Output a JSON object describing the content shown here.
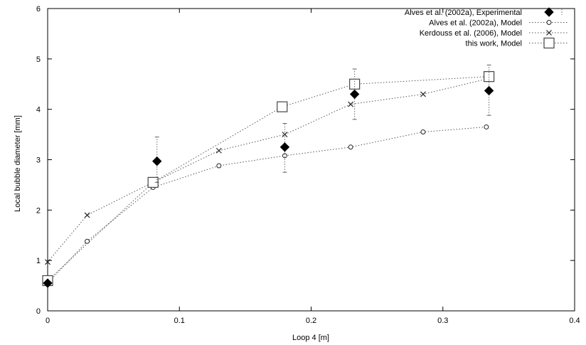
{
  "chart_data": {
    "type": "scatter",
    "xlabel": "Loop 4 [m]",
    "ylabel": "Local bubble diameter [mm]",
    "xlim": [
      0,
      0.4
    ],
    "ylim": [
      0,
      6
    ],
    "x_ticks": [
      0,
      0.1,
      0.2,
      0.3,
      0.4
    ],
    "x_tick_labels": [
      "0",
      "0.1",
      "0.2",
      "0.3",
      "0.4"
    ],
    "y_ticks": [
      0,
      1,
      2,
      3,
      4,
      5,
      6
    ],
    "y_tick_labels": [
      "0",
      "1",
      "2",
      "3",
      "4",
      "5",
      "6"
    ],
    "grid": false,
    "legend_position": "top-right",
    "series": [
      {
        "name": "Alves et al. (2002a), Experimental",
        "marker": "diamond",
        "line": "none",
        "x": [
          0.0,
          0.083,
          0.18,
          0.233,
          0.335
        ],
        "y": [
          0.55,
          2.97,
          3.25,
          4.3,
          4.37
        ],
        "err_low": [
          0.55,
          2.55,
          2.75,
          3.8,
          3.88
        ],
        "err_high": [
          0.55,
          3.45,
          3.72,
          4.8,
          4.88
        ]
      },
      {
        "name": "Alves et al. (2002a), Model",
        "marker": "circle",
        "line": "dotted",
        "x": [
          0.0,
          0.03,
          0.08,
          0.13,
          0.18,
          0.23,
          0.285,
          0.333
        ],
        "y": [
          0.55,
          1.38,
          2.45,
          2.88,
          3.08,
          3.25,
          3.55,
          3.65
        ]
      },
      {
        "name": "Kerdouss et al. (2006), Model",
        "marker": "x",
        "line": "dotted",
        "x": [
          0.0,
          0.03,
          0.08,
          0.13,
          0.18,
          0.23,
          0.285,
          0.333
        ],
        "y": [
          0.97,
          1.9,
          2.55,
          3.18,
          3.5,
          4.1,
          4.3,
          4.6
        ]
      },
      {
        "name": "this work, Model",
        "marker": "square",
        "line": "dotted",
        "x": [
          0.0,
          0.08,
          0.178,
          0.233,
          0.335
        ],
        "y": [
          0.6,
          2.55,
          4.05,
          4.5,
          4.65
        ]
      }
    ]
  }
}
